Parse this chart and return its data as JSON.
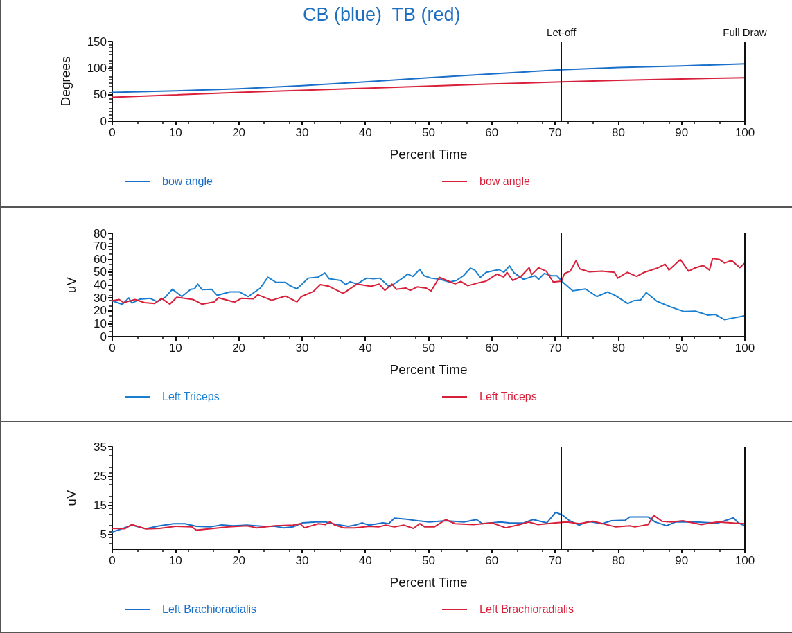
{
  "chart_data": [
    {
      "type": "line",
      "title": "CB (blue)  TB (red)",
      "xlabel": "Percent Time",
      "ylabel": "Degrees",
      "xlim": [
        0,
        100
      ],
      "xticks": [
        0,
        10,
        20,
        30,
        40,
        50,
        60,
        70,
        80,
        90,
        100
      ],
      "ylim": [
        0,
        150
      ],
      "yticks": [
        0,
        50,
        100,
        150
      ],
      "marker": "none",
      "legend": "bottom",
      "ref_lines": [
        {
          "axis": "x",
          "value": 71,
          "label": "Let-off"
        },
        {
          "axis": "x",
          "value": 100,
          "label": "Full Draw"
        }
      ],
      "series": [
        {
          "name": "bow angle",
          "color": "#1a6fc8",
          "x": [
            0,
            10,
            20,
            30,
            40,
            50,
            60,
            71,
            80,
            90,
            100
          ],
          "values": [
            54,
            57,
            61,
            67,
            74,
            82,
            89,
            97,
            101,
            104,
            108
          ]
        },
        {
          "name": "bow angle",
          "color": "#d8203a",
          "x": [
            0,
            20,
            40,
            60,
            71,
            80,
            100
          ],
          "values": [
            45,
            54,
            62,
            70,
            74,
            77,
            82
          ]
        }
      ]
    },
    {
      "type": "line",
      "xlabel": "Percent Time",
      "ylabel": "uV",
      "xlim": [
        0,
        100
      ],
      "xticks": [
        0,
        10,
        20,
        30,
        40,
        50,
        60,
        70,
        80,
        90,
        100
      ],
      "ylim": [
        0,
        80
      ],
      "yticks": [
        0,
        10,
        20,
        30,
        40,
        50,
        60,
        70,
        80
      ],
      "marker": "none",
      "legend": "bottom",
      "ref_lines": [
        {
          "axis": "x",
          "value": 71
        },
        {
          "axis": "x",
          "value": 100
        }
      ],
      "series": [
        {
          "name": "Left Triceps",
          "color": "#1a7fd0",
          "x": [
            0,
            1.6,
            2.6,
            3.1,
            4.4,
            6,
            7.1,
            8.4,
            9.5,
            11,
            12.4,
            13,
            13.5,
            14.2,
            15.7,
            16.6,
            18.6,
            20.1,
            21.5,
            23.4,
            24.6,
            25.9,
            27.4,
            28.1,
            29.2,
            31,
            32.5,
            33.6,
            34.3,
            36.1,
            36.9,
            37.6,
            38.7,
            40.2,
            41.3,
            42.3,
            43.8,
            44.9,
            46,
            46.7,
            47.5,
            48.6,
            49.3,
            50.4,
            51.8,
            53.3,
            54.4,
            55.5,
            56.6,
            57.3,
            58.2,
            59.1,
            61.1,
            61.9,
            62.8,
            63.5,
            65,
            66.8,
            67.4,
            68.3,
            69.4,
            70.3,
            71.2,
            72.8,
            74.8,
            76.6,
            78.3,
            79.5,
            81.5,
            82.4,
            83.5,
            84.4,
            86.1,
            88.3,
            90.4,
            92.2,
            94.1,
            95.3,
            96.8,
            98,
            99.9
          ],
          "values": [
            27.8,
            25,
            30,
            26,
            29,
            29.6,
            27,
            30.5,
            36.7,
            31,
            36.7,
            37,
            40.7,
            36.4,
            36.7,
            31.9,
            34.6,
            34.6,
            31,
            37.6,
            46,
            42,
            42,
            39.4,
            37,
            45.3,
            46,
            49.3,
            44.8,
            43.5,
            40.3,
            42.5,
            40.7,
            45.3,
            44.8,
            45.3,
            38.5,
            42,
            45.7,
            48.4,
            46.6,
            52,
            47.1,
            45.3,
            44.4,
            42.3,
            43.5,
            47.1,
            53,
            51.6,
            45.9,
            49.8,
            52,
            49.8,
            54.8,
            49.5,
            44.4,
            47.1,
            44.4,
            48.9,
            47.1,
            47.1,
            42.3,
            35.5,
            36.9,
            31,
            34.6,
            31.9,
            25.6,
            27.8,
            28.3,
            34.1,
            27.4,
            22.9,
            19.4,
            19.7,
            16.7,
            17.2,
            13.1,
            14.3,
            16.1
          ]
        },
        {
          "name": "Left Triceps",
          "color": "#d8203a",
          "x": [
            0,
            1.1,
            1.8,
            3.6,
            5.1,
            6.7,
            7.8,
            9.1,
            10.2,
            12.8,
            14.2,
            16.1,
            16.8,
            19.3,
            20.4,
            22.3,
            23,
            25.2,
            27.4,
            29.2,
            29.9,
            31.8,
            32.9,
            34.3,
            36.5,
            38.7,
            40.9,
            42.2,
            43.1,
            44.2,
            44.9,
            46.4,
            47.1,
            48.2,
            49.6,
            50.4,
            51.7,
            52.9,
            54.2,
            55.1,
            56.2,
            58,
            59.1,
            60.8,
            61.9,
            62.4,
            63.3,
            64.6,
            65.9,
            66.3,
            67.4,
            68.6,
            69.7,
            71,
            71.5,
            72.4,
            73.3,
            73.9,
            75.4,
            77.4,
            79.4,
            79.9,
            81.4,
            82.9,
            84.1,
            86.1,
            87.4,
            88,
            89.8,
            91.1,
            92,
            93.4,
            94.4,
            94.9,
            96,
            96.8,
            97.9,
            99.2,
            100
          ],
          "values": [
            27.8,
            28.7,
            26.3,
            28.7,
            26.3,
            25.6,
            29.6,
            25.1,
            30.5,
            28.7,
            25.1,
            26.9,
            30.1,
            26.7,
            29.6,
            29.2,
            32.4,
            28.1,
            31.4,
            26.9,
            31,
            35,
            40.3,
            38.9,
            33.5,
            40.7,
            38.9,
            40.7,
            35.8,
            40.7,
            36.7,
            37.6,
            35.8,
            38.5,
            37.6,
            35.3,
            45.9,
            43.5,
            40.9,
            42.7,
            39.4,
            41.8,
            43,
            48.4,
            46.2,
            49.8,
            43.5,
            46.6,
            53.4,
            48,
            53.4,
            50.7,
            42.3,
            43,
            48.9,
            50.7,
            58.8,
            52.5,
            50.2,
            50.7,
            49.8,
            45.3,
            49.8,
            46.6,
            49.8,
            53,
            56.1,
            51.6,
            59.7,
            50.7,
            53,
            55.2,
            51.6,
            60.6,
            59.7,
            57,
            59.1,
            53.4,
            57
          ]
        }
      ]
    },
    {
      "type": "line",
      "xlabel": "Percent Time",
      "ylabel": "uV",
      "xlim": [
        0,
        100
      ],
      "xticks": [
        0,
        10,
        20,
        30,
        40,
        50,
        60,
        70,
        80,
        90,
        100
      ],
      "ylim": [
        0,
        35
      ],
      "yticks": [
        5,
        15,
        25,
        35
      ],
      "marker": "none",
      "legend": "bottom",
      "ref_lines": [
        {
          "axis": "x",
          "value": 71
        },
        {
          "axis": "x",
          "value": 100
        }
      ],
      "series": [
        {
          "name": "Left Brachioradialis",
          "color": "#1a6fc8",
          "x": [
            0,
            0.9,
            3.1,
            5.3,
            7.5,
            9.7,
            11.5,
            13.3,
            15.5,
            17.3,
            19.1,
            21.3,
            23.9,
            25.7,
            27.1,
            28.6,
            30.1,
            32.2,
            33.7,
            35.5,
            37.3,
            38.4,
            39.5,
            40.6,
            42.8,
            43.7,
            44.6,
            46.5,
            48.3,
            50.1,
            52.7,
            55.6,
            57.6,
            58.5,
            61.4,
            62.9,
            65.1,
            66.5,
            68.7,
            70.1,
            71.2,
            72.3,
            73.8,
            75.2,
            77.4,
            78.9,
            81.1,
            81.8,
            84.7,
            85.8,
            87.6,
            89.1,
            92,
            95.7,
            98.2,
            99,
            100
          ],
          "values": [
            5.9,
            6.5,
            8.2,
            7,
            8,
            8.7,
            8.7,
            7.8,
            7.6,
            8.3,
            8,
            8.2,
            7.8,
            7.8,
            7.3,
            7.6,
            9,
            9.3,
            9.3,
            8.4,
            7.8,
            8.2,
            9,
            8.2,
            9,
            8.7,
            10.6,
            10.2,
            9.7,
            9.3,
            9.7,
            9.3,
            10.1,
            8.7,
            9.3,
            8.9,
            9,
            10.1,
            9,
            12.6,
            11.6,
            9.7,
            8.2,
            9.5,
            8.7,
            9.7,
            9.9,
            11,
            11,
            9.3,
            8,
            9.3,
            9.3,
            8.9,
            10.7,
            8.9,
            8
          ]
        },
        {
          "name": "Left Brachioradialis",
          "color": "#d8203a",
          "x": [
            0,
            2,
            3.1,
            5.3,
            7.5,
            10,
            12.6,
            13.3,
            15.5,
            18.4,
            21.3,
            22.8,
            25.7,
            28.6,
            29.7,
            30.4,
            32.6,
            33.7,
            34.4,
            35.2,
            36.6,
            38.4,
            40.6,
            42.1,
            43.2,
            44.6,
            46.1,
            47.6,
            48.6,
            49.4,
            50.9,
            52.7,
            54.2,
            57.1,
            60,
            62.2,
            64.4,
            65.8,
            67.3,
            70.1,
            71.9,
            73.8,
            76,
            79.6,
            81.8,
            82.6,
            84.7,
            85.6,
            86.9,
            88.4,
            90.2,
            93.1,
            95.7,
            98.2,
            100
          ],
          "values": [
            7.1,
            7,
            8.4,
            6.9,
            7.1,
            7.8,
            7.6,
            6.5,
            7,
            7.6,
            8,
            7.3,
            8,
            8.2,
            8.7,
            7.3,
            8.7,
            8.4,
            9.3,
            8.2,
            7.3,
            7.3,
            7.8,
            7.6,
            8.2,
            7.6,
            8.2,
            7.1,
            8.7,
            7.6,
            7.6,
            10.1,
            8.7,
            8.4,
            9,
            7.3,
            8.4,
            9.3,
            8.4,
            9,
            9.3,
            8.7,
            9.5,
            7.6,
            8,
            7.6,
            8.4,
            11.6,
            9.5,
            9.3,
            9.7,
            8.4,
            9.3,
            8.9,
            8.7
          ]
        }
      ]
    }
  ]
}
